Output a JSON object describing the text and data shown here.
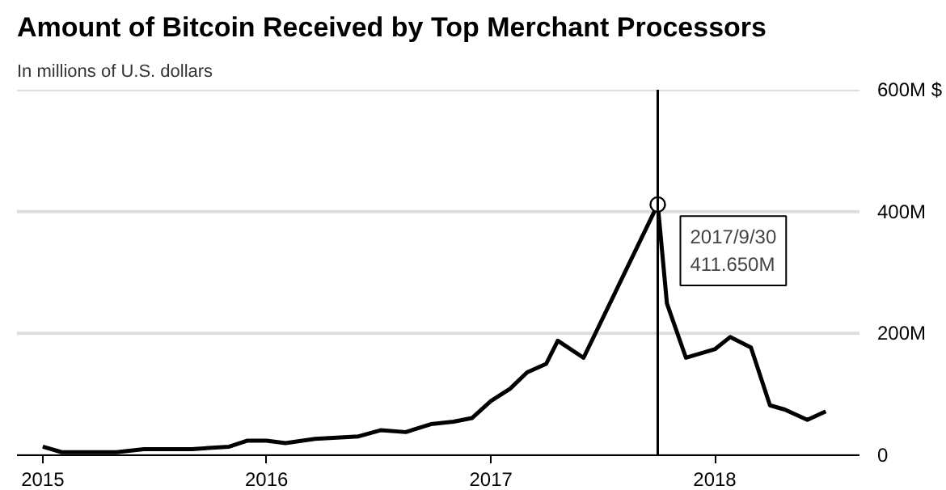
{
  "chart_data": {
    "type": "line",
    "title": "Amount of Bitcoin Received by Top Merchant Processors",
    "subtitle": "In millions of U.S. dollars",
    "x": [
      "2015-01-01",
      "2015-02-01",
      "2015-05-01",
      "2015-06-15",
      "2015-09-01",
      "2015-11-01",
      "2015-12-01",
      "2016-01-01",
      "2016-02-01",
      "2016-03-20",
      "2016-05-30",
      "2016-07-05",
      "2016-08-15",
      "2016-09-25",
      "2016-11-01",
      "2016-12-01",
      "2017-01-01",
      "2017-02-01",
      "2017-03-01",
      "2017-04-01",
      "2017-04-20",
      "2017-06-01",
      "2017-09-30",
      "2017-10-15",
      "2017-11-15",
      "2018-01-01",
      "2018-01-26",
      "2018-03-01",
      "2018-04-01",
      "2018-04-25",
      "2018-06-01",
      "2018-07-01"
    ],
    "series": [
      {
        "color": "#000000",
        "values": [
          14,
          5,
          5,
          10,
          10,
          14,
          24,
          24,
          20,
          27,
          31,
          41,
          38,
          51,
          55,
          61,
          89,
          109,
          136,
          150,
          188,
          160,
          411.65,
          249,
          160,
          174,
          194,
          177,
          82,
          75,
          58,
          72
        ]
      }
    ],
    "xlim": [
      "2014-11-20",
      "2018-08-25"
    ],
    "xticks": [
      {
        "value": "2015-01-01",
        "label": "2015"
      },
      {
        "value": "2016-01-01",
        "label": "2016"
      },
      {
        "value": "2017-01-01",
        "label": "2017"
      },
      {
        "value": "2018-01-01",
        "label": "2018"
      }
    ],
    "ylim": [
      0,
      600
    ],
    "yticks": [
      {
        "value": 0,
        "label": "0"
      },
      {
        "value": 200,
        "label": "200M"
      },
      {
        "value": 400,
        "label": "400M"
      },
      {
        "value": 600,
        "label": "600M $"
      }
    ],
    "grid": "y",
    "marker": "none",
    "line_style": "solid",
    "ref_lines": [
      {
        "axis": "x",
        "value": "2017-09-30",
        "color": "#000000"
      }
    ],
    "annotations": [
      {
        "text": "2017/9/30\n411.650M",
        "x": "2017-09-30",
        "y": 411.65
      }
    ]
  }
}
